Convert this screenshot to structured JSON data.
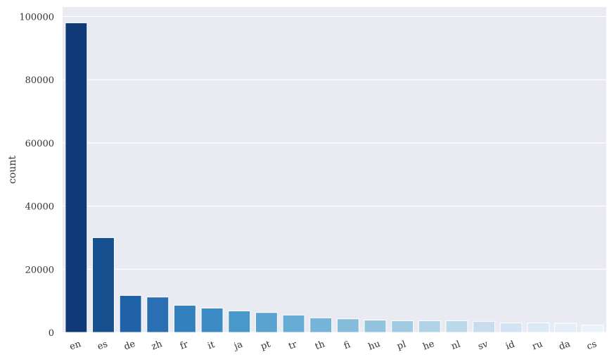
{
  "chart_data": {
    "type": "bar",
    "xlabel": "",
    "ylabel": "count",
    "ylim": [
      0,
      103000
    ],
    "yticks": [
      0,
      20000,
      40000,
      60000,
      80000,
      100000
    ],
    "grid": true,
    "background": "#EAEAF2",
    "categories": [
      "en",
      "es",
      "de",
      "zh",
      "fr",
      "it",
      "ja",
      "pt",
      "tr",
      "th",
      "fi",
      "hu",
      "pl",
      "he",
      "nl",
      "sv",
      "id",
      "ru",
      "da",
      "cs"
    ],
    "values": [
      98000,
      30000,
      11700,
      11200,
      8600,
      7700,
      6800,
      6300,
      5500,
      4600,
      4300,
      3900,
      3700,
      3700,
      3700,
      3500,
      3000,
      3000,
      2900,
      2300
    ],
    "colors": [
      "#0f3a77",
      "#17508f",
      "#1f62a8",
      "#2a6fb2",
      "#3380bd",
      "#3d8bc4",
      "#4a97c9",
      "#5aa2cf",
      "#67acd4",
      "#75b5d8",
      "#84bdda",
      "#93c4de",
      "#a1cbe3",
      "#b0d2e7",
      "#bcd8eb",
      "#c7dcee",
      "#d2e3f3",
      "#dbe9f6",
      "#e3eef9",
      "#eaf3fb"
    ]
  }
}
